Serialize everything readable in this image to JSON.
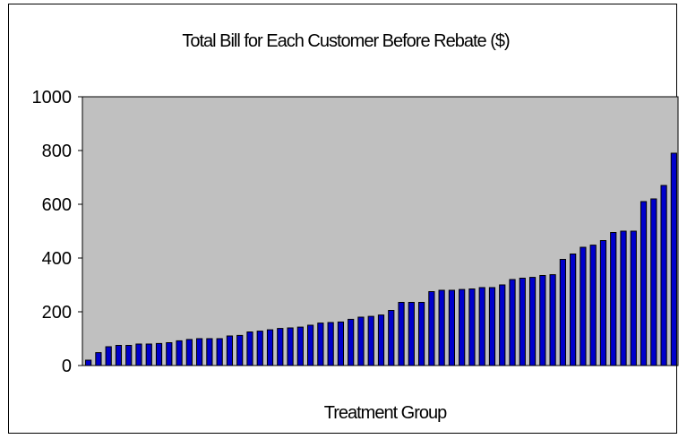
{
  "chart_data": {
    "type": "bar",
    "title": "Total Bill for Each Customer Before Rebate ($)",
    "xlabel": "Treatment Group",
    "ylabel": "",
    "ylim": [
      0,
      1000
    ],
    "yticks": [
      0,
      200,
      400,
      600,
      800,
      1000
    ],
    "grid": false,
    "legend": "none",
    "values": [
      20,
      48,
      70,
      75,
      75,
      80,
      80,
      82,
      85,
      92,
      97,
      100,
      100,
      100,
      110,
      112,
      125,
      128,
      133,
      138,
      140,
      143,
      150,
      158,
      160,
      162,
      172,
      180,
      183,
      188,
      205,
      235,
      235,
      235,
      275,
      280,
      280,
      283,
      285,
      290,
      290,
      300,
      320,
      325,
      328,
      335,
      338,
      395,
      415,
      440,
      448,
      465,
      495,
      500,
      500,
      610,
      620,
      670,
      790
    ],
    "colors": {
      "bar_fill": "#0000CC",
      "bar_edge": "#000000",
      "plot_bg": "#C0C0C0",
      "frame": "#000000"
    }
  }
}
